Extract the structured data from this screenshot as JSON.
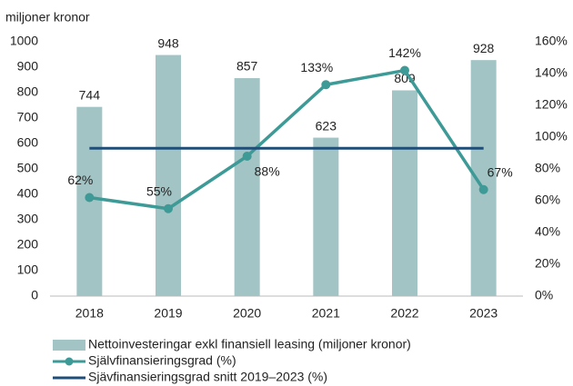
{
  "chart_data": {
    "type": "bar-line",
    "y_label": "miljoner kronor",
    "categories": [
      "2018",
      "2019",
      "2020",
      "2021",
      "2022",
      "2023"
    ],
    "ylim": [
      0,
      1000
    ],
    "yticks": [
      0,
      100,
      200,
      300,
      400,
      500,
      600,
      700,
      800,
      900,
      1000
    ],
    "y2lim": [
      0,
      160
    ],
    "y2ticks": [
      {
        "value": 0,
        "label": "0%"
      },
      {
        "value": 20,
        "label": "20%"
      },
      {
        "value": 40,
        "label": "40%"
      },
      {
        "value": 60,
        "label": "60%"
      },
      {
        "value": 80,
        "label": "80%"
      },
      {
        "value": 100,
        "label": "100%"
      },
      {
        "value": 120,
        "label": "120%"
      },
      {
        "value": 140,
        "label": "140%"
      },
      {
        "value": 160,
        "label": "160%"
      }
    ],
    "series": [
      {
        "name": "Nettoinvesteringar exkl finansiell leasing (miljoner kronor)",
        "type": "bar",
        "color": "#a3c4c4",
        "values": [
          744,
          948,
          857,
          623,
          809,
          928
        ]
      },
      {
        "name": "Självfinansieringsgrad (%)",
        "type": "line",
        "axis": "y2",
        "color": "#3d9a96",
        "values": [
          62,
          55,
          88,
          133,
          142,
          67
        ],
        "value_labels": [
          "62%",
          "55%",
          "88%",
          "133%",
          "142%",
          "67%"
        ]
      },
      {
        "name": "Sjävfinansieringsgrad snitt 2019–2023 (%)",
        "type": "line",
        "axis": "y2",
        "color": "#1f4e79",
        "values": [
          93,
          93,
          93,
          93,
          93,
          93
        ]
      }
    ]
  }
}
